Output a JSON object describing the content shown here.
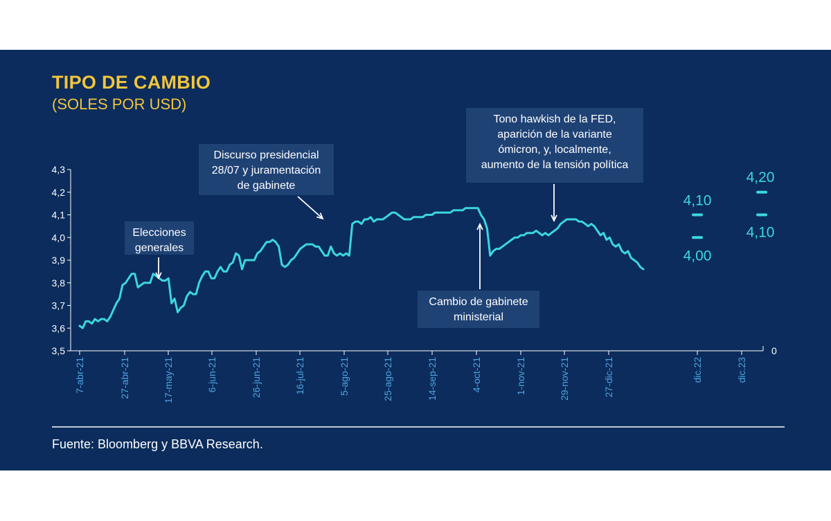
{
  "chart_data": {
    "type": "line",
    "title": "TIPO DE CAMBIO",
    "subtitle": "(SOLES POR USD)",
    "source": "Fuente: Bloomberg y BBVA Research.",
    "ylim": [
      3.5,
      4.3
    ],
    "y_ticks": [
      "3,5",
      "3,6",
      "3,7",
      "3,8",
      "3,9",
      "4,0",
      "4,1",
      "4,2",
      "4,3"
    ],
    "x_ticks": [
      "7-abr-21",
      "27-abr-21",
      "17-may-21",
      "6-jun-21",
      "26-jun-21",
      "16-jul-21",
      "5-ago-21",
      "25-ago-21",
      "14-sep-21",
      "4-oct-21",
      "1-nov-21",
      "29-nov-21",
      "27-dic-21",
      "dic.22",
      "dic.23"
    ],
    "right_axis_label": "0",
    "series": [
      {
        "color": "#3cd6e0",
        "values": [
          3.61,
          3.6,
          3.63,
          3.63,
          3.62,
          3.64,
          3.63,
          3.64,
          3.64,
          3.63,
          3.65,
          3.68,
          3.71,
          3.73,
          3.79,
          3.8,
          3.82,
          3.84,
          3.84,
          3.78,
          3.79,
          3.8,
          3.8,
          3.8,
          3.84,
          3.83,
          3.82,
          3.81,
          3.81,
          3.82,
          3.71,
          3.73,
          3.67,
          3.69,
          3.7,
          3.74,
          3.76,
          3.75,
          3.75,
          3.8,
          3.83,
          3.85,
          3.85,
          3.82,
          3.82,
          3.85,
          3.87,
          3.85,
          3.85,
          3.88,
          3.89,
          3.93,
          3.92,
          3.86,
          3.9,
          3.9,
          3.9,
          3.9,
          3.93,
          3.94,
          3.96,
          3.98,
          3.98,
          3.99,
          3.98,
          3.96,
          3.88,
          3.87,
          3.88,
          3.9,
          3.91,
          3.93,
          3.95,
          3.96,
          3.97,
          3.97,
          3.97,
          3.96,
          3.96,
          3.94,
          3.92,
          3.92,
          3.96,
          3.93,
          3.92,
          3.93,
          3.92,
          3.93,
          3.92,
          4.06,
          4.07,
          4.07,
          4.06,
          4.08,
          4.08,
          4.09,
          4.07,
          4.08,
          4.08,
          4.08,
          4.09,
          4.1,
          4.11,
          4.11,
          4.1,
          4.09,
          4.08,
          4.08,
          4.08,
          4.09,
          4.09,
          4.09,
          4.09,
          4.1,
          4.1,
          4.1,
          4.11,
          4.11,
          4.11,
          4.11,
          4.11,
          4.11,
          4.12,
          4.12,
          4.12,
          4.12,
          4.13,
          4.13,
          4.13,
          4.13,
          4.13,
          4.1,
          4.08,
          4.04,
          3.92,
          3.94,
          3.95,
          3.95,
          3.96,
          3.97,
          3.98,
          3.99,
          4.0,
          4.0,
          4.01,
          4.01,
          4.02,
          4.02,
          4.02,
          4.03,
          4.02,
          4.01,
          4.02,
          4.01,
          4.02,
          4.03,
          4.04,
          4.06,
          4.07,
          4.08,
          4.08,
          4.08,
          4.08,
          4.07,
          4.07,
          4.06,
          4.05,
          4.06,
          4.05,
          4.03,
          4.01,
          4.02,
          3.99,
          4.0,
          3.97,
          3.96,
          3.97,
          3.94,
          3.93,
          3.94,
          3.91,
          3.9,
          3.89,
          3.87,
          3.86
        ]
      }
    ],
    "forecasts": [
      {
        "label": "dic.22",
        "points": [
          {
            "value": "4,10"
          },
          {
            "value": "4,00"
          }
        ]
      },
      {
        "label": "dic.23",
        "points": [
          {
            "value": "4,20"
          },
          {
            "value": "4,10"
          }
        ]
      }
    ],
    "annotations": [
      {
        "lines": [
          "Elecciones",
          "generales"
        ]
      },
      {
        "lines": [
          "Discurso presidencial",
          "28/07 y juramentación",
          "de gabinete"
        ]
      },
      {
        "lines": [
          "Tono hawkish de la FED,",
          "aparición de la variante",
          "ómicron, y, localmente,",
          "aumento de la tensión política"
        ]
      },
      {
        "lines": [
          "Cambio de gabinete",
          "ministerial"
        ]
      }
    ]
  }
}
